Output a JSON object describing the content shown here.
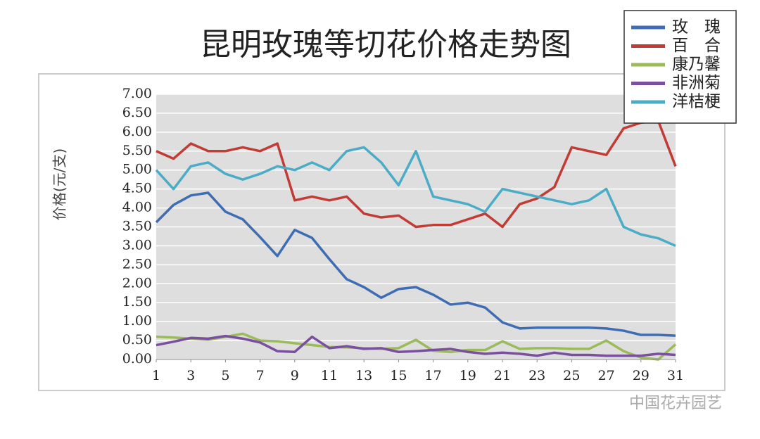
{
  "chart_data": {
    "type": "line",
    "title": "昆明玫瑰等切花价格走势图",
    "y_label": "价格(元/支)",
    "watermark": "中国花卉园艺",
    "x": [
      1,
      2,
      3,
      4,
      5,
      6,
      7,
      8,
      9,
      10,
      11,
      12,
      13,
      14,
      15,
      16,
      17,
      18,
      19,
      20,
      21,
      22,
      23,
      24,
      25,
      26,
      27,
      28,
      29,
      30,
      31
    ],
    "xlim": [
      1,
      31
    ],
    "xticks": [
      1,
      3,
      5,
      7,
      9,
      11,
      13,
      15,
      17,
      19,
      21,
      23,
      25,
      27,
      29,
      31
    ],
    "ylim": [
      0,
      7
    ],
    "yticks": [
      {
        "value": 0,
        "label": "0.00"
      },
      {
        "value": 0.5,
        "label": "0.50"
      },
      {
        "value": 1,
        "label": "1.00"
      },
      {
        "value": 1.5,
        "label": "1.50"
      },
      {
        "value": 2,
        "label": "2.00"
      },
      {
        "value": 2.5,
        "label": "2.50"
      },
      {
        "value": 3,
        "label": "3.00"
      },
      {
        "value": 3.5,
        "label": "3.50"
      },
      {
        "value": 4,
        "label": "4.00"
      },
      {
        "value": 4.5,
        "label": "4.50"
      },
      {
        "value": 5,
        "label": "5.00"
      },
      {
        "value": 5.5,
        "label": "5.50"
      },
      {
        "value": 6,
        "label": "6.00"
      },
      {
        "value": 6.5,
        "label": "6.50"
      },
      {
        "value": 7,
        "label": "7.00"
      }
    ],
    "grid": true,
    "legend": "top-right",
    "series": [
      {
        "name": "玫　瑰",
        "color": "#3f6db3",
        "values": [
          3.62,
          4.08,
          4.33,
          4.4,
          3.9,
          3.7,
          3.23,
          2.73,
          3.42,
          3.21,
          2.65,
          2.12,
          1.91,
          1.63,
          1.86,
          1.91,
          1.71,
          1.45,
          1.5,
          1.37,
          0.98,
          0.82,
          0.84,
          0.84,
          0.84,
          0.84,
          0.82,
          0.76,
          0.65,
          0.65,
          0.63
        ]
      },
      {
        "name": "百　合",
        "color": "#c23b34",
        "values": [
          5.5,
          5.3,
          5.7,
          5.5,
          5.5,
          5.6,
          5.5,
          5.7,
          4.2,
          4.3,
          4.2,
          4.3,
          3.85,
          3.75,
          3.8,
          3.5,
          3.55,
          3.55,
          3.7,
          3.85,
          3.5,
          4.1,
          4.25,
          4.55,
          5.6,
          5.5,
          5.4,
          6.1,
          6.25,
          6.3,
          5.1
        ]
      },
      {
        "name": "康乃馨",
        "color": "#9bbb59",
        "values": [
          0.6,
          0.58,
          0.55,
          0.52,
          0.6,
          0.68,
          0.5,
          0.48,
          0.43,
          0.38,
          0.33,
          0.32,
          0.3,
          0.28,
          0.3,
          0.52,
          0.23,
          0.2,
          0.25,
          0.25,
          0.48,
          0.28,
          0.3,
          0.3,
          0.28,
          0.28,
          0.5,
          0.22,
          0.05,
          0.0,
          0.4
        ]
      },
      {
        "name": "非洲菊",
        "color": "#7a4f9e",
        "values": [
          0.38,
          0.47,
          0.57,
          0.55,
          0.62,
          0.55,
          0.45,
          0.22,
          0.2,
          0.6,
          0.3,
          0.35,
          0.28,
          0.3,
          0.2,
          0.22,
          0.25,
          0.28,
          0.2,
          0.15,
          0.18,
          0.15,
          0.1,
          0.18,
          0.12,
          0.12,
          0.1,
          0.1,
          0.1,
          0.15,
          0.12
        ]
      },
      {
        "name": "洋桔梗",
        "color": "#4bacc6",
        "values": [
          5.0,
          4.5,
          5.1,
          5.2,
          4.9,
          4.75,
          4.9,
          5.1,
          5.0,
          5.2,
          5.0,
          5.5,
          5.6,
          5.2,
          4.6,
          5.5,
          4.3,
          4.2,
          4.1,
          3.9,
          4.5,
          4.4,
          4.3,
          4.2,
          4.1,
          4.2,
          4.5,
          3.5,
          3.3,
          3.2,
          3.0
        ]
      }
    ]
  }
}
